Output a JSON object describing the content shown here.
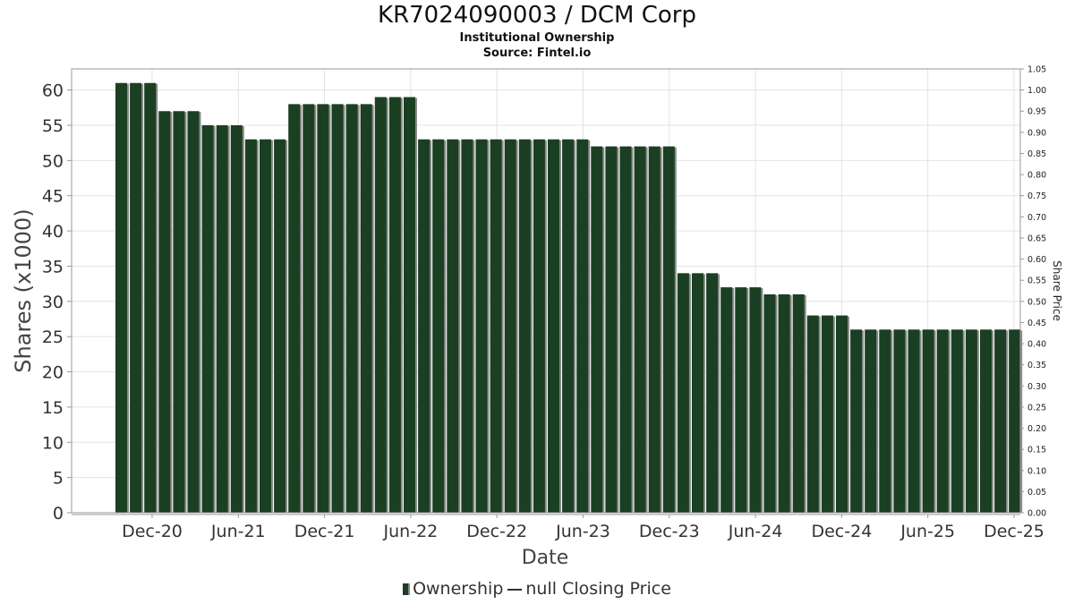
{
  "chart_data": {
    "type": "bar",
    "title": "KR7024090003 / DCM Corp",
    "subtitle": "Institutional Ownership",
    "source": "Source: Fintel.io",
    "xlabel": "Date",
    "ylabel": "Shares (x1000)",
    "y2label": "Share Price",
    "ylim": [
      0,
      63
    ],
    "y2lim": [
      0,
      1.05
    ],
    "yticks": [
      0,
      5,
      10,
      15,
      20,
      25,
      30,
      35,
      40,
      45,
      50,
      55,
      60
    ],
    "y2ticks": [
      "0.00",
      "0.05",
      "0.10",
      "0.15",
      "0.20",
      "0.25",
      "0.30",
      "0.35",
      "0.40",
      "0.45",
      "0.50",
      "0.55",
      "0.60",
      "0.65",
      "0.70",
      "0.75",
      "0.80",
      "0.85",
      "0.90",
      "0.95",
      "1.00",
      "1.05"
    ],
    "xticks": [
      "Dec-20",
      "Jun-21",
      "Dec-21",
      "Jun-22",
      "Dec-22",
      "Jun-23",
      "Dec-23",
      "Jun-24",
      "Dec-24",
      "Jun-25",
      "Dec-25"
    ],
    "grid": true,
    "legend_position": "bottom",
    "series": [
      {
        "name": "Ownership",
        "color": "#1b3f22",
        "values": [
          61,
          61,
          61,
          57,
          57,
          57,
          55,
          55,
          55,
          53,
          53,
          53,
          58,
          58,
          58,
          58,
          58,
          58,
          59,
          59,
          59,
          53,
          53,
          53,
          53,
          53,
          53,
          53,
          53,
          53,
          53,
          53,
          53,
          52,
          52,
          52,
          52,
          52,
          52,
          34,
          34,
          34,
          32,
          32,
          32,
          31,
          31,
          31,
          28,
          28,
          28,
          26,
          26,
          26,
          26,
          26,
          26,
          26,
          26,
          26,
          26,
          26,
          26
        ]
      }
    ],
    "legend": {
      "series1": "Ownership",
      "series2": "null Closing Price"
    }
  }
}
